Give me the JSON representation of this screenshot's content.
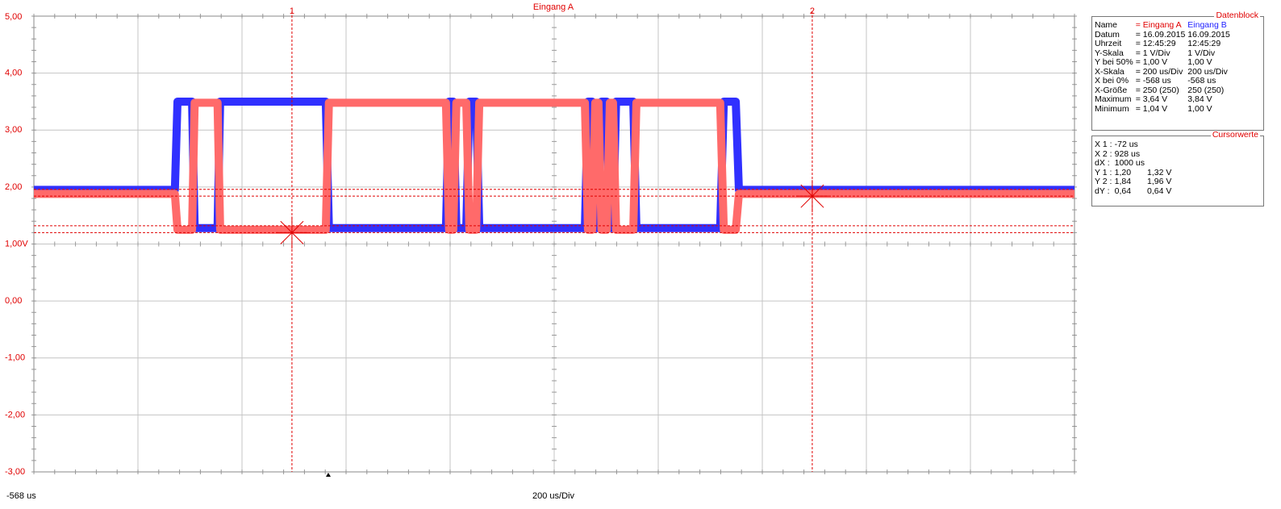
{
  "chart_data": {
    "type": "line",
    "title": "Eingang A",
    "x_start_label": "-568 us",
    "x_scale_label": "200 us/Div",
    "xlim": [
      -568,
      1432
    ],
    "ylim": [
      -3,
      5
    ],
    "xticks": [
      -568,
      -368,
      -168,
      32,
      232,
      432,
      632,
      832,
      1032,
      1232,
      1432
    ],
    "yticks": [
      {
        "value": 5,
        "label": "5,00"
      },
      {
        "value": 4,
        "label": "4,00"
      },
      {
        "value": 3,
        "label": "3,00"
      },
      {
        "value": 2,
        "label": "2,00"
      },
      {
        "value": 1,
        "label": "1,00V"
      },
      {
        "value": 0,
        "label": "0,00"
      },
      {
        "value": -1,
        "label": "-1,00"
      },
      {
        "value": -2,
        "label": "-2,00"
      },
      {
        "value": -3,
        "label": "-3,00"
      }
    ],
    "grid": true,
    "x": [
      -568,
      -297,
      -292,
      -264,
      -259,
      -215,
      -210,
      -7,
      -1,
      224,
      230,
      238,
      244,
      263,
      269,
      282,
      288,
      491,
      497,
      505,
      511,
      517,
      523,
      533,
      539,
      545,
      551,
      584,
      590,
      751,
      758,
      781,
      787,
      1432
    ],
    "series": [
      {
        "name": "Eingang B",
        "color": "#3030ff",
        "values": [
          1.95,
          1.95,
          3.5,
          3.5,
          1.28,
          1.28,
          3.5,
          3.5,
          1.28,
          1.28,
          3.5,
          3.5,
          1.28,
          1.28,
          3.5,
          3.5,
          1.28,
          1.28,
          3.5,
          3.5,
          1.28,
          1.28,
          3.5,
          3.5,
          1.28,
          1.28,
          3.5,
          3.5,
          1.28,
          1.28,
          3.5,
          3.5,
          1.95,
          1.95
        ]
      },
      {
        "name": "Eingang A",
        "color": "#ff6a6a",
        "values": [
          1.88,
          1.88,
          1.25,
          1.25,
          3.48,
          3.48,
          1.25,
          1.25,
          3.48,
          3.48,
          1.25,
          1.25,
          3.48,
          3.48,
          1.25,
          1.25,
          3.48,
          3.48,
          1.25,
          1.25,
          3.48,
          3.48,
          1.25,
          1.25,
          3.48,
          3.48,
          1.25,
          1.25,
          3.48,
          3.48,
          1.25,
          1.25,
          1.88,
          1.88
        ]
      }
    ],
    "cursor_x": [
      {
        "value": -72,
        "label": "1"
      },
      {
        "value": 928,
        "label": "2"
      }
    ],
    "cursor_y": [
      1.2,
      1.32,
      1.84,
      1.96
    ],
    "cursor_color": "#e00000"
  },
  "datenblock": {
    "title": "Datenblock",
    "rows": [
      [
        "Name",
        "= Eingang A",
        "Eingang B"
      ],
      [
        "Datum",
        "= 16.09.2015",
        "16.09.2015"
      ],
      [
        "Uhrzeit",
        "= 12:45:29",
        "12:45:29"
      ],
      [
        "Y-Skala",
        "= 1 V/Div",
        "1 V/Div"
      ],
      [
        "Y bei 50%",
        "= 1,00 V",
        "1,00 V"
      ],
      [
        "X-Skala",
        "= 200 us/Div",
        "200 us/Div"
      ],
      [
        "X bei 0%",
        "= -568 us",
        "-568 us"
      ],
      [
        "X-Größe",
        "= 250 (250)",
        "250 (250)"
      ],
      [
        "Maximum",
        "= 3,64 V",
        "3,84 V"
      ],
      [
        "Minimum",
        "= 1,04 V",
        "1,00 V"
      ]
    ]
  },
  "cursorwerte": {
    "title": "Cursorwerte",
    "rows": [
      [
        "X 1 :",
        "-72 us",
        ""
      ],
      [
        "X 2 :",
        "928 us",
        ""
      ],
      [
        "dX :",
        "1000 us",
        ""
      ],
      [
        "Y 1 :",
        "1,20",
        "1,32 V"
      ],
      [
        "Y 2 :",
        "1,84",
        "1,96 V"
      ],
      [
        "dY :",
        "0,64",
        "0,64 V"
      ]
    ]
  }
}
